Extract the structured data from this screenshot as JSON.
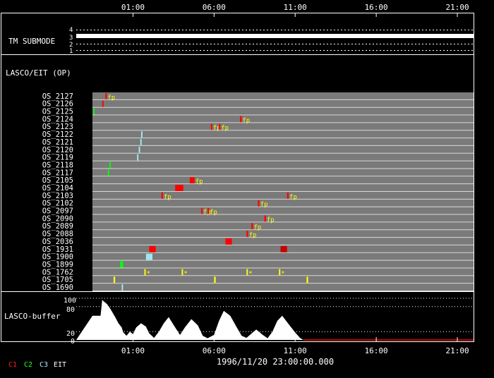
{
  "time_axis": {
    "start_hour": 22.5,
    "end_hour": 46.0,
    "top_labels": [
      "01:00",
      "06:00",
      "11:00",
      "16:00",
      "21:00"
    ],
    "bottom_labels": [
      "01:00",
      "06:00",
      "11:00",
      "16:00",
      "21:00"
    ],
    "label_hours": [
      25,
      30,
      35,
      40,
      45
    ]
  },
  "tm_submode": {
    "label": "TM SUBMODE",
    "levels": [
      "4",
      "3",
      "2",
      "1"
    ],
    "active_level": "3"
  },
  "lasco_eit": {
    "label": "LASCO/EIT (OP)"
  },
  "os_rows": [
    "OS_2127",
    "OS_2126",
    "OS_2125",
    "OS_2124",
    "OS_2123",
    "OS_2122",
    "OS_2121",
    "OS_2120",
    "OS_2119",
    "OS_2118",
    "OS_2117",
    "OS_2105",
    "OS_2104",
    "OS_2103",
    "OS_2102",
    "OS_2097",
    "OS_2090",
    "OS_2089",
    "OS_2088",
    "OS_2036",
    "OS_1931",
    "OS_1900",
    "OS_1899",
    "OS_1762",
    "OS_1705",
    "OS_1690"
  ],
  "event_colors": {
    "red": "#ff0000",
    "yellow": "#ffff00",
    "green": "#00ff00",
    "cyan": "#9fe8f0",
    "dark_red": "#cc0000"
  },
  "events": [
    {
      "row": "OS_2127",
      "start": 23.3,
      "end": 23.35,
      "color": "red",
      "tag": "fp"
    },
    {
      "row": "OS_2126",
      "start": 23.1,
      "end": 23.15,
      "color": "red"
    },
    {
      "row": "OS_2125",
      "start": 22.55,
      "end": 22.6,
      "color": "green"
    },
    {
      "row": "OS_2124",
      "start": 31.6,
      "end": 31.7,
      "color": "red",
      "tag": "fp"
    },
    {
      "row": "OS_2123",
      "start": 29.8,
      "end": 29.85,
      "color": "red",
      "tag": "fp"
    },
    {
      "row": "OS_2123",
      "start": 30.3,
      "end": 30.35,
      "color": "red",
      "tag": "fp"
    },
    {
      "row": "OS_2122",
      "start": 25.5,
      "end": 25.55,
      "color": "cyan"
    },
    {
      "row": "OS_2121",
      "start": 25.45,
      "end": 25.5,
      "color": "cyan"
    },
    {
      "row": "OS_2120",
      "start": 25.35,
      "end": 25.4,
      "color": "cyan"
    },
    {
      "row": "OS_2119",
      "start": 25.25,
      "end": 25.3,
      "color": "cyan"
    },
    {
      "row": "OS_2118",
      "start": 23.55,
      "end": 23.6,
      "color": "green"
    },
    {
      "row": "OS_2117",
      "start": 23.45,
      "end": 23.5,
      "color": "green"
    },
    {
      "row": "OS_2105",
      "start": 28.5,
      "end": 28.8,
      "color": "red",
      "tag": "fp"
    },
    {
      "row": "OS_2104",
      "start": 27.6,
      "end": 28.1,
      "color": "red"
    },
    {
      "row": "OS_2103",
      "start": 26.75,
      "end": 26.85,
      "color": "red",
      "tag": "fp"
    },
    {
      "row": "OS_2103",
      "start": 34.5,
      "end": 34.6,
      "color": "red",
      "tag": "fp"
    },
    {
      "row": "OS_2102",
      "start": 32.7,
      "end": 32.8,
      "color": "red",
      "tag": "fp"
    },
    {
      "row": "OS_2097",
      "start": 29.2,
      "end": 29.25,
      "color": "red",
      "tag": "fp"
    },
    {
      "row": "OS_2097",
      "start": 29.6,
      "end": 29.65,
      "color": "red",
      "tag": "fp"
    },
    {
      "row": "OS_2090",
      "start": 33.1,
      "end": 33.2,
      "color": "red",
      "tag": "fp"
    },
    {
      "row": "OS_2089",
      "start": 32.3,
      "end": 32.4,
      "color": "red",
      "tag": "fp"
    },
    {
      "row": "OS_2088",
      "start": 32.0,
      "end": 32.1,
      "color": "red",
      "tag": "fp"
    },
    {
      "row": "OS_2036",
      "start": 30.7,
      "end": 31.1,
      "color": "red"
    },
    {
      "row": "OS_1931",
      "start": 26.0,
      "end": 26.4,
      "color": "red"
    },
    {
      "row": "OS_1931",
      "start": 34.1,
      "end": 34.5,
      "color": "dark_red"
    },
    {
      "row": "OS_1900",
      "start": 25.8,
      "end": 26.2,
      "color": "cyan"
    },
    {
      "row": "OS_1899",
      "start": 24.2,
      "end": 24.4,
      "color": "green"
    },
    {
      "row": "OS_1762",
      "start": 25.7,
      "end": 25.75,
      "color": "yellow",
      "tag": "*"
    },
    {
      "row": "OS_1762",
      "start": 28.0,
      "end": 28.05,
      "color": "yellow",
      "tag": "*"
    },
    {
      "row": "OS_1762",
      "start": 32.0,
      "end": 32.05,
      "color": "yellow",
      "tag": "*"
    },
    {
      "row": "OS_1762",
      "start": 34.0,
      "end": 34.05,
      "color": "yellow",
      "tag": "*"
    },
    {
      "row": "OS_1705",
      "start": 23.8,
      "end": 23.9,
      "color": "yellow"
    },
    {
      "row": "OS_1705",
      "start": 30.0,
      "end": 30.1,
      "color": "yellow"
    },
    {
      "row": "OS_1705",
      "start": 35.7,
      "end": 35.8,
      "color": "yellow"
    },
    {
      "row": "OS_1690",
      "start": 24.3,
      "end": 24.35,
      "color": "cyan"
    }
  ],
  "lasco_buffer": {
    "label": "LASCO-buffer",
    "ticks": [
      "100",
      "80",
      "20",
      "0"
    ],
    "tick_values": [
      100,
      80,
      20,
      0
    ],
    "points": [
      [
        22.5,
        58
      ],
      [
        23.0,
        58
      ],
      [
        23.1,
        96
      ],
      [
        23.4,
        86
      ],
      [
        23.6,
        75
      ],
      [
        23.9,
        55
      ],
      [
        24.1,
        40
      ],
      [
        24.3,
        30
      ],
      [
        24.4,
        18
      ],
      [
        24.6,
        10
      ],
      [
        24.8,
        20
      ],
      [
        25.0,
        14
      ],
      [
        25.2,
        30
      ],
      [
        25.5,
        40
      ],
      [
        25.8,
        32
      ],
      [
        26.0,
        16
      ],
      [
        26.3,
        5
      ],
      [
        26.6,
        20
      ],
      [
        26.9,
        40
      ],
      [
        27.2,
        55
      ],
      [
        27.6,
        30
      ],
      [
        27.9,
        12
      ],
      [
        28.2,
        30
      ],
      [
        28.6,
        50
      ],
      [
        29.0,
        35
      ],
      [
        29.3,
        10
      ],
      [
        29.6,
        4
      ],
      [
        30.0,
        12
      ],
      [
        30.3,
        45
      ],
      [
        30.6,
        70
      ],
      [
        31.0,
        58
      ],
      [
        31.4,
        30
      ],
      [
        31.7,
        10
      ],
      [
        32.0,
        5
      ],
      [
        32.3,
        15
      ],
      [
        32.6,
        25
      ],
      [
        33.0,
        12
      ],
      [
        33.3,
        4
      ],
      [
        33.6,
        20
      ],
      [
        33.9,
        46
      ],
      [
        34.2,
        58
      ],
      [
        34.6,
        38
      ],
      [
        35.0,
        18
      ],
      [
        35.3,
        5
      ],
      [
        35.5,
        0
      ],
      [
        46.0,
        0
      ]
    ]
  },
  "legend": [
    {
      "label": "C1",
      "color": "#ff2020"
    },
    {
      "label": "C2",
      "color": "#20ff20"
    },
    {
      "label": "C3",
      "color": "#b0f0ff"
    },
    {
      "label": "EIT",
      "color": "#ffffff"
    }
  ],
  "timestamp": "1996/11/20 23:00:00.000"
}
